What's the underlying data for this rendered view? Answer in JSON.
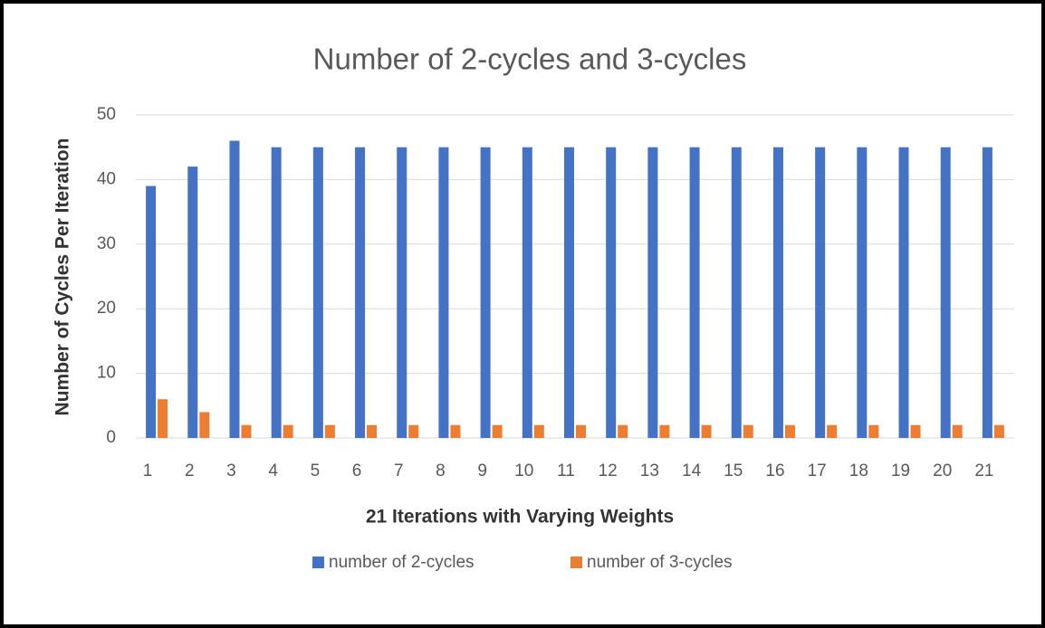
{
  "chart_data": {
    "type": "bar",
    "title": "Number of 2-cycles and 3-cycles",
    "x_label": "21 Iterations with Varying Weights",
    "y_label": "Number of Cycles Per Iteration",
    "categories": [
      "1",
      "2",
      "3",
      "4",
      "5",
      "6",
      "7",
      "8",
      "9",
      "10",
      "11",
      "12",
      "13",
      "14",
      "15",
      "16",
      "17",
      "18",
      "19",
      "20",
      "21"
    ],
    "series": [
      {
        "name": "number of 2-cycles",
        "color": "#4472c4",
        "values": [
          39,
          42,
          46,
          45,
          45,
          45,
          45,
          45,
          45,
          45,
          45,
          45,
          45,
          45,
          45,
          45,
          45,
          45,
          45,
          45,
          45
        ]
      },
      {
        "name": "number of 3-cycles",
        "color": "#ed7d31",
        "values": [
          6,
          4,
          2,
          2,
          2,
          2,
          2,
          2,
          2,
          2,
          2,
          2,
          2,
          2,
          2,
          2,
          2,
          2,
          2,
          2,
          2
        ]
      }
    ],
    "ylim": [
      0,
      50
    ],
    "yticks": [
      0,
      10,
      20,
      30,
      40,
      50
    ],
    "grid": true,
    "legend": "bottom"
  }
}
